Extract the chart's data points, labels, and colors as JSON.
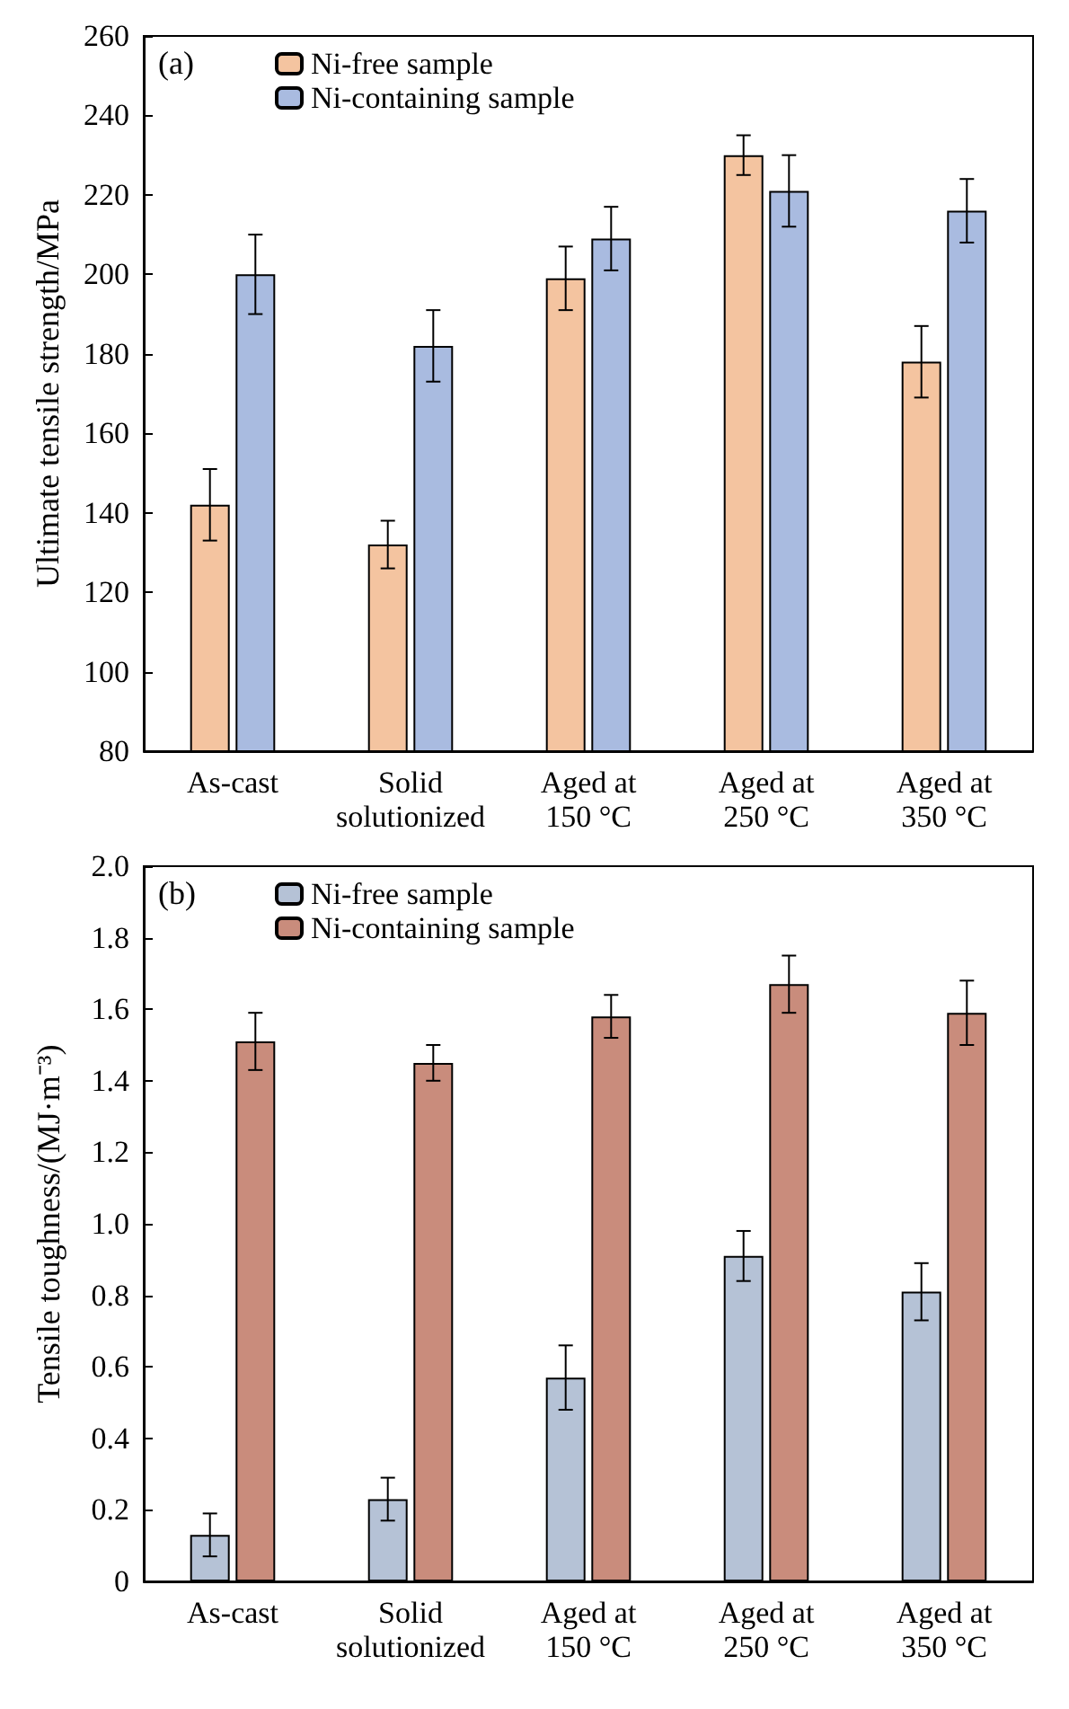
{
  "chart_data": [
    {
      "type": "bar",
      "ylabel": "Ultimate tensile strength/MPa",
      "annotations": [
        "(a)"
      ],
      "categories": [
        "As-cast",
        "Solid\nsolutionized",
        "Aged at\n150 °C",
        "Aged at\n250 °C",
        "Aged at\n350 °C"
      ],
      "series": [
        {
          "name": "Ni-free sample",
          "color": "#f4c4a0",
          "values": [
            142,
            132,
            199,
            230,
            178
          ],
          "errors": [
            9,
            6,
            8,
            5,
            9
          ]
        },
        {
          "name": "Ni-containing sample",
          "color": "#a9bbe0",
          "values": [
            200,
            182,
            209,
            221,
            216
          ],
          "errors": [
            10,
            9,
            8,
            9,
            8
          ]
        }
      ],
      "ylim": [
        80,
        260
      ],
      "yticks": [
        80,
        100,
        120,
        140,
        160,
        180,
        200,
        220,
        240,
        260
      ],
      "grid": false,
      "legend": "top left"
    },
    {
      "type": "bar",
      "ylabel": "Tensile toughness/(MJ·m⁻³)",
      "annotations": [
        "(b)"
      ],
      "categories": [
        "As-cast",
        "Solid\nsolutionized",
        "Aged at\n150 °C",
        "Aged at\n250 °C",
        "Aged at\n350 °C"
      ],
      "series": [
        {
          "name": "Ni-free sample",
          "color": "#b5c2d6",
          "values": [
            0.13,
            0.23,
            0.57,
            0.91,
            0.81
          ],
          "errors": [
            0.06,
            0.06,
            0.09,
            0.07,
            0.08
          ]
        },
        {
          "name": "Ni-containing sample",
          "color": "#c98c7c",
          "values": [
            1.51,
            1.45,
            1.58,
            1.67,
            1.59
          ],
          "errors": [
            0.08,
            0.05,
            0.06,
            0.08,
            0.09
          ]
        }
      ],
      "ylim": [
        0,
        2
      ],
      "yticks": [
        0,
        0.2,
        0.4,
        0.6,
        0.8,
        {
          "value": 1,
          "label": "1.0"
        },
        1.2,
        1.4,
        1.6,
        1.8,
        {
          "value": 2,
          "label": "2.0"
        }
      ],
      "grid": false,
      "legend": "top left"
    }
  ]
}
